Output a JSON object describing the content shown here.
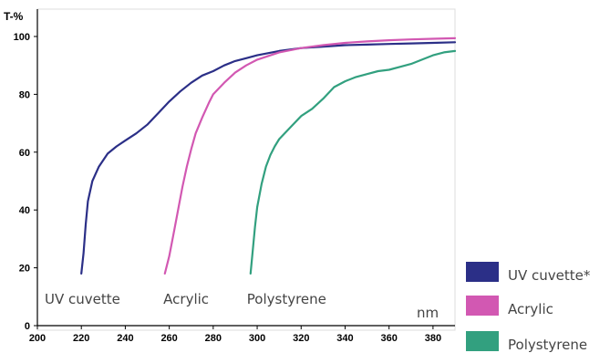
{
  "chart_data": {
    "type": "line",
    "ylabel": "T-%",
    "xlabel": "nm",
    "xlim": [
      200,
      390
    ],
    "ylim": [
      0,
      100
    ],
    "x_ticks": [
      200,
      220,
      240,
      260,
      280,
      300,
      320,
      340,
      360,
      380
    ],
    "y_ticks": [
      0,
      20,
      40,
      60,
      80,
      100
    ],
    "grid": false,
    "legend_position": "bottom-right, outside plot",
    "annotations": [
      {
        "text": "UV cuvette",
        "x": 200
      },
      {
        "text": "Acrylic",
        "x": 254
      },
      {
        "text": "Polystyrene",
        "x": 292
      }
    ],
    "series": [
      {
        "name": "UV cuvette*",
        "color": "#2b2f87",
        "x": [
          220,
          221,
          222,
          223,
          225,
          228,
          232,
          236,
          240,
          245,
          250,
          255,
          260,
          265,
          270,
          275,
          280,
          285,
          290,
          295,
          300,
          310,
          320,
          330,
          340,
          350,
          360,
          370,
          380,
          390
        ],
        "y": [
          18,
          25,
          35,
          43,
          50,
          55,
          59.5,
          62,
          64,
          66.5,
          69.5,
          73.5,
          77.5,
          81,
          84,
          86.5,
          88,
          90,
          91.5,
          92.5,
          93.5,
          95,
          96,
          96.5,
          97,
          97.2,
          97.4,
          97.6,
          97.8,
          98
        ]
      },
      {
        "name": "Acrylic",
        "color": "#d258b2",
        "x": [
          258,
          260,
          262,
          264,
          266,
          268,
          270,
          272,
          275,
          278,
          280,
          285,
          290,
          295,
          300,
          310,
          320,
          330,
          340,
          350,
          360,
          370,
          380,
          390
        ],
        "y": [
          18,
          24,
          32,
          40,
          48,
          55,
          61,
          66.5,
          72,
          77,
          80,
          84,
          87.5,
          90,
          92,
          94.5,
          96,
          97,
          97.8,
          98.3,
          98.7,
          99,
          99.2,
          99.4
        ]
      },
      {
        "name": "Polystyrene",
        "color": "#32a07f",
        "x": [
          297,
          298,
          299,
          300,
          302,
          304,
          306,
          308,
          310,
          315,
          320,
          325,
          330,
          335,
          340,
          345,
          350,
          355,
          360,
          365,
          370,
          375,
          380,
          385,
          390
        ],
        "y": [
          18,
          26,
          34,
          41,
          49,
          55,
          59,
          62,
          64.5,
          68.5,
          72.5,
          75,
          78.5,
          82.5,
          84.5,
          86,
          87,
          88,
          88.5,
          89.5,
          90.5,
          92,
          93.5,
          94.5,
          95
        ]
      }
    ]
  }
}
